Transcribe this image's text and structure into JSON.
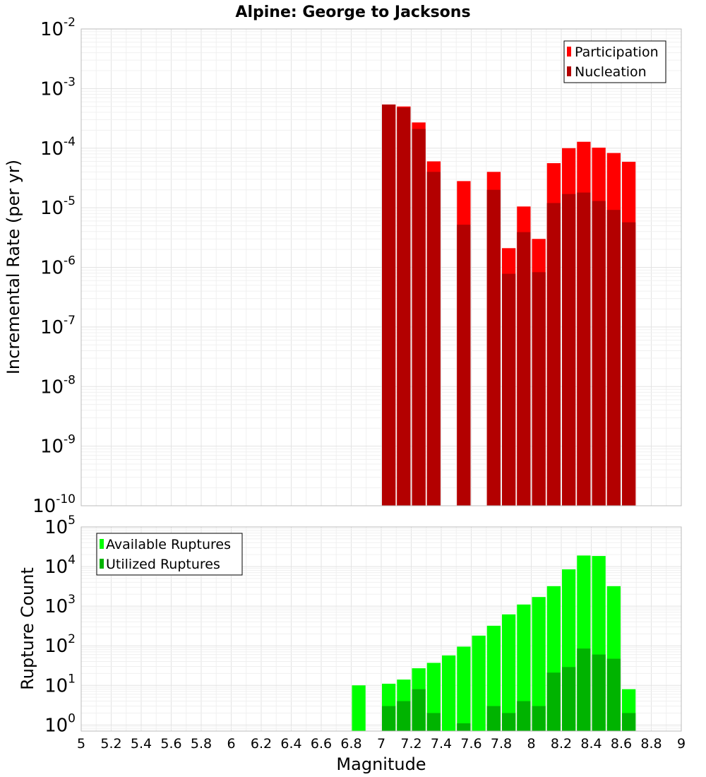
{
  "title": "Alpine: George to Jacksons",
  "colors": {
    "participation": "#ff0000",
    "nucleation": "#b30000",
    "available": "#00ff00",
    "utilized": "#00b300"
  },
  "chart_data": [
    {
      "type": "bar",
      "panel": "rates",
      "xlabel": "Magnitude",
      "ylabel": "Incremental Rate (per yr)",
      "xlim": [
        5,
        9
      ],
      "ylim": [
        1e-10,
        0.01
      ],
      "yscale": "log",
      "grid": true,
      "legend": "top-right",
      "bar_width": 0.1,
      "yticks": [
        {
          "base": "10",
          "exp": "-10"
        },
        {
          "base": "10",
          "exp": "-9"
        },
        {
          "base": "10",
          "exp": "-8"
        },
        {
          "base": "10",
          "exp": "-7"
        },
        {
          "base": "10",
          "exp": "-6"
        },
        {
          "base": "10",
          "exp": "-5"
        },
        {
          "base": "10",
          "exp": "-4"
        },
        {
          "base": "10",
          "exp": "-3"
        },
        {
          "base": "10",
          "exp": "-2"
        }
      ],
      "ytick_values": [
        1e-10,
        1e-09,
        1e-08,
        1e-07,
        1e-06,
        1e-05,
        0.0001,
        0.001,
        0.01
      ],
      "x": [
        7.05,
        7.15,
        7.25,
        7.35,
        7.55,
        7.75,
        7.85,
        7.95,
        8.05,
        8.15,
        8.25,
        8.35,
        8.45,
        8.55,
        8.65
      ],
      "series": [
        {
          "name": "Participation",
          "color": "#ff0000",
          "values": [
            0.00054,
            0.0005,
            0.00027,
            6e-05,
            2.8e-05,
            4e-05,
            2.1e-06,
            1.05e-05,
            3e-06,
            5.6e-05,
            0.0001,
            0.000128,
            0.000102,
            8.3e-05,
            5.9e-05
          ]
        },
        {
          "name": "Nucleation",
          "color": "#b30000",
          "values": [
            0.00054,
            0.00048,
            0.00021,
            4e-05,
            5.2e-06,
            2e-05,
            7.8e-07,
            3.9e-06,
            8.3e-07,
            1.2e-05,
            1.7e-05,
            1.8e-05,
            1.3e-05,
            9.2e-06,
            5.7e-06
          ]
        }
      ]
    },
    {
      "type": "bar",
      "panel": "counts",
      "xlabel": "Magnitude",
      "ylabel": "Rupture Count",
      "xlim": [
        5,
        9
      ],
      "ylim": [
        0.7,
        100000
      ],
      "yscale": "log",
      "grid": true,
      "legend": "top-left",
      "bar_width": 0.1,
      "yticks": [
        {
          "base": "10",
          "exp": "0"
        },
        {
          "base": "10",
          "exp": "1"
        },
        {
          "base": "10",
          "exp": "2"
        },
        {
          "base": "10",
          "exp": "3"
        },
        {
          "base": "10",
          "exp": "4"
        },
        {
          "base": "10",
          "exp": "5"
        }
      ],
      "ytick_values": [
        1,
        10,
        100,
        1000,
        10000,
        100000
      ],
      "xticks": [
        "5",
        "5.2",
        "5.4",
        "5.6",
        "5.8",
        "6",
        "6.2",
        "6.4",
        "6.6",
        "6.8",
        "7",
        "7.2",
        "7.4",
        "7.6",
        "7.8",
        "8",
        "8.2",
        "8.4",
        "8.6",
        "8.8",
        "9"
      ],
      "xtick_values": [
        5,
        5.2,
        5.4,
        5.6,
        5.8,
        6,
        6.2,
        6.4,
        6.6,
        6.8,
        7,
        7.2,
        7.4,
        7.6,
        7.8,
        8,
        8.2,
        8.4,
        8.6,
        8.8,
        9
      ],
      "x": [
        6.85,
        7.05,
        7.15,
        7.25,
        7.35,
        7.45,
        7.55,
        7.65,
        7.75,
        7.85,
        7.95,
        8.05,
        8.15,
        8.25,
        8.35,
        8.45,
        8.55,
        8.65
      ],
      "series": [
        {
          "name": "Available Ruptures",
          "color": "#00ff00",
          "values": [
            10,
            11,
            14,
            27,
            37,
            57,
            95,
            180,
            320,
            620,
            1100,
            1700,
            3200,
            8500,
            19000,
            18500,
            3200,
            8
          ]
        },
        {
          "name": "Utilized Ruptures",
          "color": "#00b300",
          "values": [
            null,
            3,
            4,
            8,
            2,
            null,
            1.1,
            null,
            3,
            2,
            4,
            3,
            21,
            29,
            85,
            60,
            47,
            2
          ]
        }
      ]
    }
  ]
}
